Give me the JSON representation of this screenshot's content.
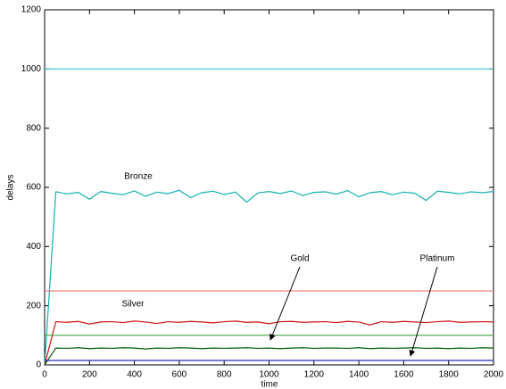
{
  "chart_data": {
    "type": "line",
    "xlabel": "time",
    "ylabel": "delays",
    "xlim": [
      0,
      2000
    ],
    "ylim": [
      0,
      1200
    ],
    "xticks": [
      0,
      200,
      400,
      600,
      800,
      1000,
      1200,
      1400,
      1600,
      1800,
      2000
    ],
    "yticks": [
      0,
      200,
      400,
      600,
      800,
      1000,
      1200
    ],
    "annotations": [
      "Bronze",
      "Silver",
      "Gold",
      "Platinum"
    ],
    "series": [
      {
        "color": "#3cc8c8",
        "x": [
          0,
          2000
        ],
        "values": [
          1000,
          1000
        ]
      },
      {
        "color": "#10b0b0",
        "x": [
          0,
          50,
          100,
          150,
          200,
          250,
          300,
          350,
          400,
          450,
          500,
          550,
          600,
          650,
          700,
          750,
          800,
          850,
          900,
          950,
          1000,
          1050,
          1100,
          1150,
          1200,
          1250,
          1300,
          1350,
          1400,
          1450,
          1500,
          1550,
          1600,
          1650,
          1700,
          1750,
          1800,
          1850,
          1900,
          1950,
          2000
        ],
        "values": [
          0,
          585,
          578,
          583,
          560,
          586,
          580,
          575,
          588,
          570,
          584,
          579,
          590,
          565,
          582,
          587,
          576,
          584,
          550,
          581,
          586,
          579,
          588,
          572,
          583,
          585,
          577,
          589,
          568,
          582,
          586,
          575,
          584,
          580,
          556,
          587,
          583,
          578,
          585,
          582,
          586
        ]
      },
      {
        "color": "#f07070",
        "x": [
          0,
          2000
        ],
        "values": [
          250,
          250
        ]
      },
      {
        "color": "#d01010",
        "x": [
          0,
          50,
          100,
          150,
          200,
          250,
          300,
          350,
          400,
          450,
          500,
          550,
          600,
          650,
          700,
          750,
          800,
          850,
          900,
          950,
          1000,
          1050,
          1100,
          1150,
          1200,
          1250,
          1300,
          1350,
          1400,
          1450,
          1500,
          1550,
          1600,
          1650,
          1700,
          1750,
          1800,
          1850,
          1900,
          1950,
          2000
        ],
        "values": [
          0,
          146,
          144,
          147,
          138,
          145,
          146,
          143,
          148,
          145,
          140,
          146,
          144,
          147,
          145,
          142,
          146,
          148,
          144,
          145,
          139,
          146,
          147,
          144,
          145,
          146,
          143,
          147,
          145,
          135,
          146,
          144,
          147,
          145,
          143,
          146,
          148,
          144,
          145,
          146,
          145
        ]
      },
      {
        "color": "#40a040",
        "x": [
          0,
          2000
        ],
        "values": [
          100,
          100
        ]
      },
      {
        "color": "#006000",
        "x": [
          0,
          50,
          100,
          150,
          200,
          250,
          300,
          350,
          400,
          450,
          500,
          550,
          600,
          650,
          700,
          750,
          800,
          850,
          900,
          950,
          1000,
          1050,
          1100,
          1150,
          1200,
          1250,
          1300,
          1350,
          1400,
          1450,
          1500,
          1550,
          1600,
          1650,
          1700,
          1750,
          1800,
          1850,
          1900,
          1950,
          2000
        ],
        "values": [
          0,
          57,
          56,
          58,
          55,
          57,
          56,
          58,
          57,
          54,
          57,
          56,
          58,
          57,
          55,
          57,
          56,
          57,
          58,
          56,
          57,
          55,
          57,
          58,
          56,
          57,
          57,
          56,
          58,
          55,
          57,
          56,
          57,
          58,
          56,
          57,
          55,
          57,
          56,
          58,
          57
        ]
      },
      {
        "color": "#2030c0",
        "x": [
          0,
          2000
        ],
        "values": [
          15,
          15
        ]
      }
    ]
  }
}
